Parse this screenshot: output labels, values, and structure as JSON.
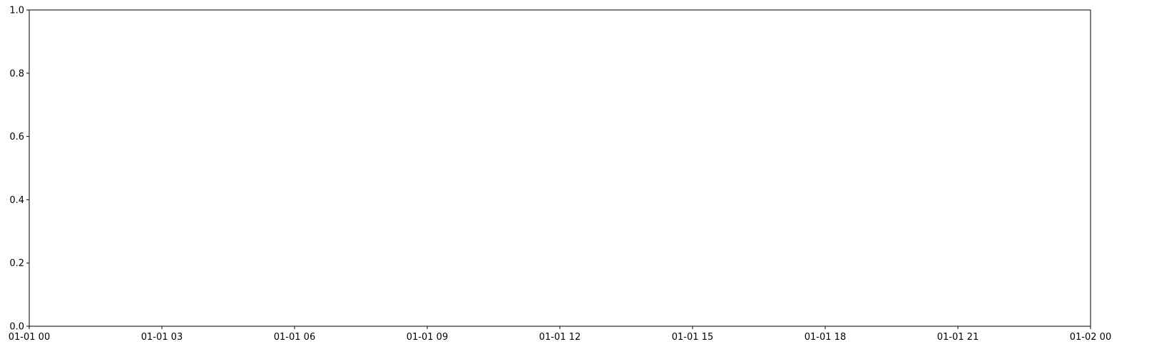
{
  "chart_data": {
    "type": "line",
    "title": "",
    "xlabel": "",
    "ylabel": "",
    "series": [],
    "xlim": [
      "01-01 00",
      "01-02 00"
    ],
    "ylim": [
      0.0,
      1.0
    ],
    "x_ticks": [
      "01-01 00",
      "01-01 03",
      "01-01 06",
      "01-01 09",
      "01-01 12",
      "01-01 15",
      "01-01 18",
      "01-01 21",
      "01-02 00"
    ],
    "y_ticks": [
      "0.0",
      "0.2",
      "0.4",
      "0.6",
      "0.8",
      "1.0"
    ],
    "grid": false,
    "legend": "none",
    "colors": {
      "axes": "#000000",
      "background": "#ffffff"
    }
  }
}
